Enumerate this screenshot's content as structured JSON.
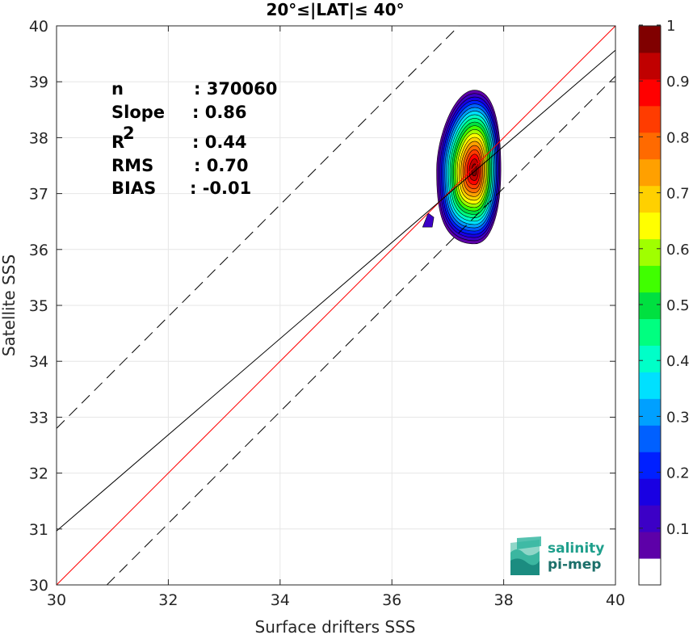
{
  "chart_data": {
    "type": "heatmap",
    "title": "20°≤|LAT|≤ 40°",
    "xlabel": "Surface drifters SSS",
    "ylabel": "Satellite SSS",
    "xlim": [
      30,
      40
    ],
    "ylim": [
      30,
      40
    ],
    "xticks": [
      "30",
      "32",
      "34",
      "36",
      "38",
      "40"
    ],
    "yticks": [
      "30",
      "31",
      "32",
      "33",
      "34",
      "35",
      "36",
      "37",
      "38",
      "39",
      "40"
    ],
    "grid": true,
    "stats": [
      {
        "label": "n",
        "value": ": 370060"
      },
      {
        "label": "Slope",
        "value": ": 0.86"
      },
      {
        "label": "R",
        "sup": "2",
        "value": ": 0.44"
      },
      {
        "label": "RMS",
        "value": ": 0.70"
      },
      {
        "label": "BIAS",
        "value": ": -0.01"
      }
    ],
    "lines": [
      {
        "name": "one-to-one",
        "color": "#ff0000",
        "style": "solid",
        "intercept": 0,
        "slope": 1
      },
      {
        "name": "fit",
        "color": "#000000",
        "style": "solid",
        "slope": 0.86,
        "intercept": 5.165
      },
      {
        "name": "upper-bound",
        "color": "#000000",
        "style": "dashed",
        "slope": 1,
        "intercept": 2.8
      },
      {
        "name": "lower-bound",
        "color": "#000000",
        "style": "dashed",
        "slope": 1,
        "intercept": -0.9
      }
    ],
    "density": {
      "peak": {
        "x": 37.48,
        "y": 37.42
      },
      "levels": [
        0.05,
        0.1,
        0.15,
        0.2,
        0.25,
        0.3,
        0.35,
        0.4,
        0.45,
        0.5,
        0.55,
        0.6,
        0.65,
        0.7,
        0.75,
        0.8,
        0.85,
        0.9,
        0.95
      ],
      "outer_extent": {
        "x": [
          36.8,
          37.95
        ],
        "y": [
          36.1,
          38.85
        ]
      },
      "secondary_blob": {
        "x": [
          36.55,
          36.75
        ],
        "y": [
          36.4,
          36.65
        ]
      }
    },
    "colorbar": {
      "range": [
        0,
        1
      ],
      "ticks": [
        "0.1",
        "0.2",
        "0.3",
        "0.4",
        "0.5",
        "0.6",
        "0.7",
        "0.8",
        "0.9",
        "1"
      ],
      "colors": [
        "#ffffff",
        "#5d00a8",
        "#3c00c6",
        "#1900e2",
        "#0020ff",
        "#0060ff",
        "#00a0ff",
        "#00e0ff",
        "#00ffc8",
        "#00ff80",
        "#00e040",
        "#40ff00",
        "#a0ff00",
        "#ffff00",
        "#ffd000",
        "#ffa000",
        "#ff6a00",
        "#ff3c00",
        "#ff0000",
        "#c00000",
        "#800000"
      ]
    }
  },
  "logo": {
    "line1": "salinity",
    "line2": "pi-mep"
  }
}
